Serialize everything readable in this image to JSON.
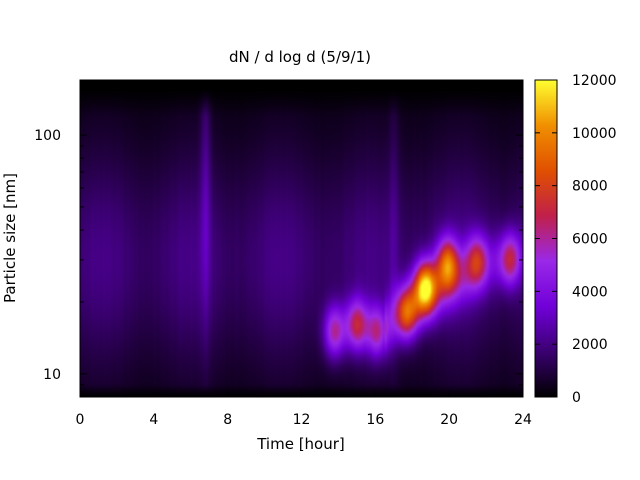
{
  "chart_data": {
    "type": "heatmap",
    "title": "dN / d log d (5/9/1)",
    "xlabel": "Time [hour]",
    "ylabel": "Particle size [nm]",
    "xlim": [
      0,
      24
    ],
    "ylim": [
      8,
      170
    ],
    "y_scale": "log",
    "x_ticks": [
      0,
      4,
      8,
      12,
      16,
      20,
      24
    ],
    "x_tick_labels": [
      "0",
      "4",
      "8",
      "12",
      "16",
      "20",
      "24"
    ],
    "y_ticks": [
      10,
      100
    ],
    "y_tick_labels": [
      "10",
      "100"
    ],
    "colorbar": {
      "range": [
        0,
        12000
      ],
      "ticks": [
        0,
        2000,
        4000,
        6000,
        8000,
        10000,
        12000
      ],
      "tick_labels": [
        "0",
        "2000",
        "4000",
        "6000",
        "8000",
        "10000",
        "12000"
      ],
      "palette": [
        "#000000",
        "#3a0070",
        "#7000d8",
        "#9a28e8",
        "#c0204a",
        "#e05000",
        "#f09000",
        "#ffff30"
      ]
    },
    "background_level": 1800,
    "features": [
      {
        "kind": "plume",
        "time": 6.8,
        "size": 60,
        "value": 3200
      },
      {
        "kind": "plume",
        "time": 17.0,
        "size": 45,
        "value": 2600
      },
      {
        "kind": "blob",
        "time": 13.8,
        "size": 15,
        "value": 6800
      },
      {
        "kind": "blob",
        "time": 15.0,
        "size": 16,
        "value": 7400
      },
      {
        "kind": "blob",
        "time": 16.1,
        "size": 15,
        "value": 6600
      },
      {
        "kind": "blob",
        "time": 17.7,
        "size": 18,
        "value": 7600
      },
      {
        "kind": "blob",
        "time": 18.7,
        "size": 23,
        "value": 10500
      },
      {
        "kind": "blob",
        "time": 19.9,
        "size": 29,
        "value": 8500
      },
      {
        "kind": "blob",
        "time": 21.5,
        "size": 30,
        "value": 6000
      },
      {
        "kind": "blob",
        "time": 23.3,
        "size": 30,
        "value": 6500
      }
    ]
  }
}
